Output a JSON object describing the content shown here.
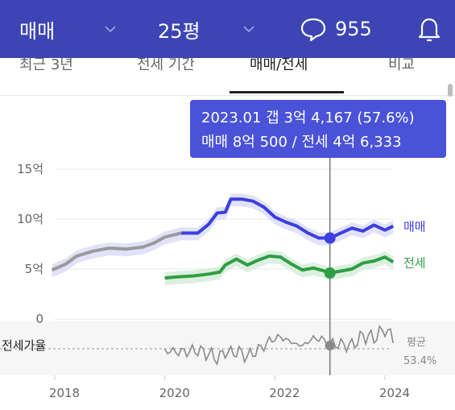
{
  "topbar": {
    "trade_type": "매매",
    "size": "25평",
    "comment_count": "955",
    "icons": [
      "chevron-down-icon",
      "chat-bubble-icon",
      "bell-icon"
    ]
  },
  "tabs": [
    {
      "label": "최근 3년"
    },
    {
      "label": "전세 기간"
    },
    {
      "label": "매매/전세",
      "active": true
    },
    {
      "label": "비교"
    }
  ],
  "tooltip": {
    "line1": "2023.01  갭 3억 4,167 (57.6%)",
    "line2": "매매 8억 500 / 전세 4억 6,333"
  },
  "chart_data": {
    "type": "line",
    "y_unit": "억",
    "yticks": [
      "15억",
      "10억",
      "5억",
      "0"
    ],
    "ylim": [
      0,
      15
    ],
    "xlim": [
      2017.9,
      2024.3
    ],
    "xticks": [
      "2018",
      "2020",
      "2022",
      "2024"
    ],
    "series": [
      {
        "name": "매매",
        "color": "#3b3fe0",
        "x": [
          2017.95,
          2018.2,
          2018.4,
          2018.7,
          2019.0,
          2019.3,
          2019.6,
          2019.8,
          2020.0,
          2020.3,
          2020.6,
          2020.8,
          2020.95,
          2021.1,
          2021.2,
          2021.4,
          2021.6,
          2021.8,
          2022.0,
          2022.2,
          2022.4,
          2022.6,
          2022.8,
          2023.0,
          2023.2,
          2023.4,
          2023.6,
          2023.8,
          2024.0,
          2024.15
        ],
        "y": [
          4.9,
          5.5,
          6.3,
          6.8,
          7.1,
          7.0,
          7.2,
          7.6,
          8.2,
          8.6,
          8.6,
          9.5,
          10.6,
          10.7,
          12.0,
          12.0,
          11.8,
          11.2,
          10.2,
          9.7,
          9.3,
          8.6,
          8.1,
          8.1,
          8.6,
          9.1,
          8.8,
          9.4,
          8.9,
          9.3
        ]
      },
      {
        "name": "전세",
        "color": "#2f9e44",
        "x": [
          2020.0,
          2020.2,
          2020.5,
          2020.8,
          2021.0,
          2021.1,
          2021.3,
          2021.5,
          2021.7,
          2021.9,
          2022.1,
          2022.3,
          2022.5,
          2022.7,
          2022.9,
          2023.0,
          2023.2,
          2023.4,
          2023.6,
          2023.8,
          2024.0,
          2024.15
        ],
        "y": [
          4.1,
          4.2,
          4.3,
          4.5,
          4.7,
          5.4,
          6.0,
          5.4,
          5.9,
          6.3,
          6.2,
          5.5,
          4.9,
          5.1,
          4.8,
          4.6,
          4.8,
          5.0,
          5.6,
          5.8,
          6.2,
          5.7
        ]
      }
    ],
    "sub_chart": {
      "label": "전세가율",
      "average_label": "평균",
      "average_value": "53.4%"
    },
    "marker": {
      "date": "2023.01"
    }
  }
}
